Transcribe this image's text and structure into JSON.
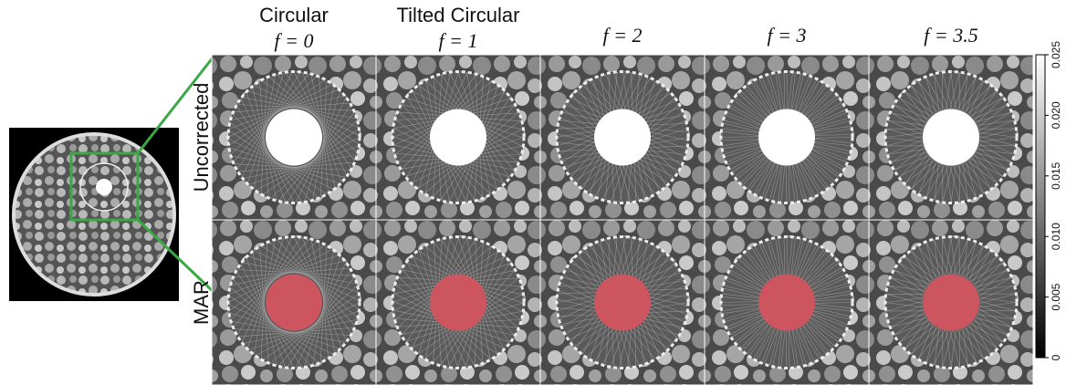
{
  "columns": [
    {
      "title": "Circular",
      "param": "f = 0"
    },
    {
      "title": "Tilted Circular",
      "param": "f = 1"
    },
    {
      "param": "f = 2"
    },
    {
      "param": "f = 3"
    },
    {
      "param": "f = 3.5"
    }
  ],
  "rows": [
    "Uncorrected",
    "MAR"
  ],
  "colorbar": {
    "ticks": [
      "0",
      "0.005",
      "0.010",
      "0.015",
      "0.020",
      "0.025"
    ]
  }
}
